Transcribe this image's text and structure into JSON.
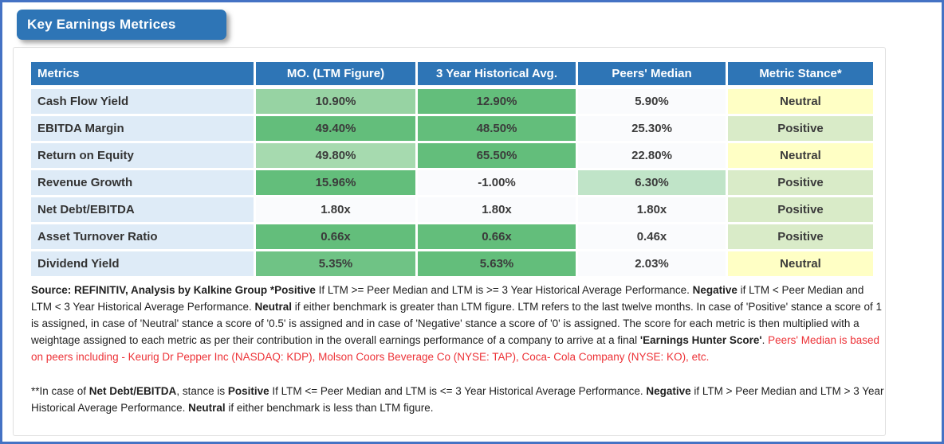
{
  "title": "Key Earnings Metrices",
  "colors": {
    "frame_blue": "#4472C4",
    "header_blue": "#2E75B6",
    "label_blue": "#DEEBF7",
    "green_strong": "#63BE7B",
    "green_light": "#97D3A3",
    "green_pale": "#C0E4C8",
    "white_cell": "#FAFBFD",
    "stance_positive": "#D9EBC8",
    "stance_neutral": "#FFFFC5",
    "footnote_red": "#ED3237"
  },
  "table": {
    "headers": [
      "Metrics",
      "MO. (LTM Figure)",
      "3 Year Historical Avg.",
      "Peers' Median",
      "Metric Stance*"
    ],
    "rows": [
      {
        "metric": "Cash Flow Yield",
        "ltm": "10.90%",
        "hist": "12.90%",
        "peers": "5.90%",
        "stance": "Neutral",
        "ltm_bg": "#97D3A3",
        "hist_bg": "#63BE7B",
        "peers_bg": "#FAFBFD",
        "stance_bg": "#FFFFC5"
      },
      {
        "metric": "EBITDA Margin",
        "ltm": "49.40%",
        "hist": "48.50%",
        "peers": "25.30%",
        "stance": "Positive",
        "ltm_bg": "#63BE7B",
        "hist_bg": "#63BE7B",
        "peers_bg": "#FAFBFD",
        "stance_bg": "#D9EBC8"
      },
      {
        "metric": "Return on Equity",
        "ltm": "49.80%",
        "hist": "65.50%",
        "peers": "22.80%",
        "stance": "Neutral",
        "ltm_bg": "#A6DAAF",
        "hist_bg": "#63BE7B",
        "peers_bg": "#FAFBFD",
        "stance_bg": "#FFFFC5"
      },
      {
        "metric": "Revenue Growth",
        "ltm": "15.96%",
        "hist": "-1.00%",
        "peers": "6.30%",
        "stance": "Positive",
        "ltm_bg": "#63BE7B",
        "hist_bg": "#FAFBFD",
        "peers_bg": "#C0E4C8",
        "stance_bg": "#D9EBC8"
      },
      {
        "metric": "Net Debt/EBITDA",
        "ltm": "1.80x",
        "hist": "1.80x",
        "peers": "1.80x",
        "stance": "Positive",
        "ltm_bg": "#FAFBFD",
        "hist_bg": "#FAFBFD",
        "peers_bg": "#FAFBFD",
        "stance_bg": "#D9EBC8"
      },
      {
        "metric": "Asset Turnover Ratio",
        "ltm": "0.66x",
        "hist": "0.66x",
        "peers": "0.46x",
        "stance": "Positive",
        "ltm_bg": "#63BE7B",
        "hist_bg": "#63BE7B",
        "peers_bg": "#FAFBFD",
        "stance_bg": "#D9EBC8"
      },
      {
        "metric": "Dividend Yield",
        "ltm": "5.35%",
        "hist": "5.63%",
        "peers": "2.03%",
        "stance": "Neutral",
        "ltm_bg": "#6FC385",
        "hist_bg": "#63BE7B",
        "peers_bg": "#FAFBFD",
        "stance_bg": "#FFFFC5"
      }
    ]
  },
  "footnotes": {
    "para1": [
      {
        "text": "Source: REFINITIV, Analysis by Kalkine Group  *Positive",
        "bold": true
      },
      {
        "text": " If LTM >= Peer Median and LTM is >= 3 Year Historical Average Performance. "
      },
      {
        "text": "Negative",
        "bold": true
      },
      {
        "text": " if LTM < Peer Median and LTM < 3 Year Historical Average Performance. "
      },
      {
        "text": "Neutral",
        "bold": true
      },
      {
        "text": " if either benchmark is greater than LTM figure. LTM refers to the last twelve months. In case of 'Positive' stance a score of 1 is assigned, in case of 'Neutral' stance a score of '0.5' is assigned and in case of 'Negative' stance a score of '0' is assigned. The score for each metric is then multiplied with a weightage assigned to each metric as per their contribution in the overall earnings performance of a company to arrive at a final "
      },
      {
        "text": "'Earnings Hunter Score'",
        "bold": true
      },
      {
        "text": ". "
      },
      {
        "text": "Peers' Median is based on peers including - Keurig Dr Pepper Inc (NASDAQ: KDP), Molson Coors Beverage Co (NYSE: TAP), Coca- Cola Company (NYSE: KO), etc.",
        "color": "#ED3237"
      }
    ],
    "para2": [
      {
        "text": "**In case of "
      },
      {
        "text": "Net Debt/EBITDA",
        "bold": true
      },
      {
        "text": ", stance is "
      },
      {
        "text": "Positive",
        "bold": true
      },
      {
        "text": " If LTM <= Peer Median and LTM is <= 3 Year Historical Average Performance. "
      },
      {
        "text": "Negative",
        "bold": true
      },
      {
        "text": " if LTM > Peer Median and LTM > 3 Year Historical Average Performance. "
      },
      {
        "text": "Neutral",
        "bold": true
      },
      {
        "text": " if either benchmark is less than LTM figure."
      }
    ]
  }
}
